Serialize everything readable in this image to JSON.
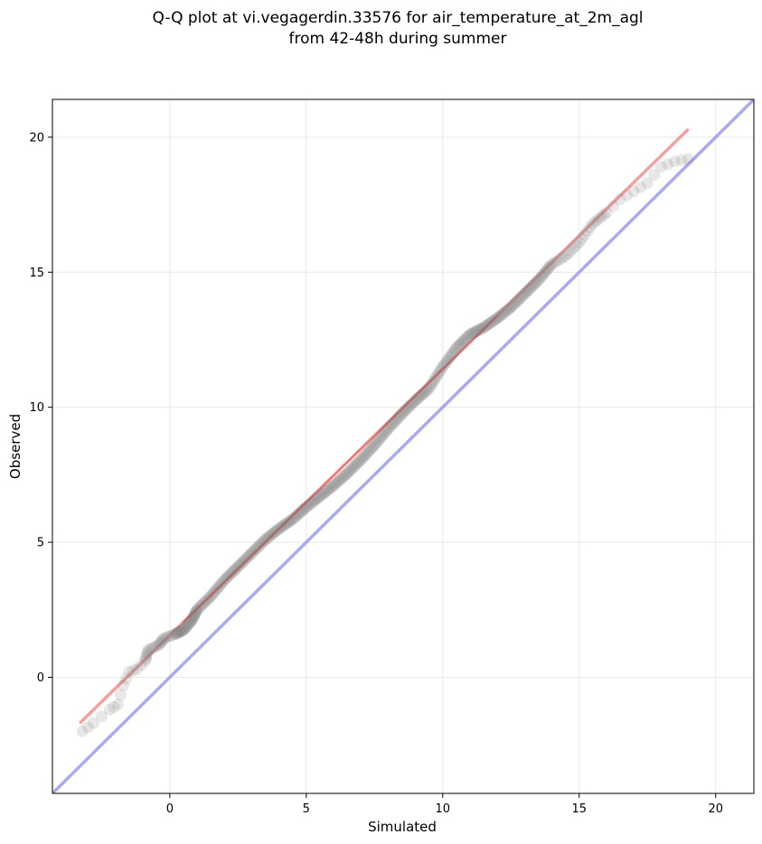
{
  "chart_data": {
    "type": "scatter",
    "title_lines": [
      "Q-Q plot at vi.vegagerdin.33576 for air_temperature_at_2m_agl",
      "from 42-48h during summer"
    ],
    "xlabel": "Simulated",
    "ylabel": "Observed",
    "xlim": [
      -4.3,
      21.4
    ],
    "ylim": [
      -4.3,
      21.4
    ],
    "x_ticks": [
      0,
      5,
      10,
      15,
      20
    ],
    "y_ticks": [
      0,
      5,
      10,
      15,
      20
    ],
    "x_tick_labels": [
      "0",
      "5",
      "10",
      "15",
      "20"
    ],
    "y_tick_labels": [
      "0",
      "5",
      "10",
      "15",
      "20"
    ],
    "grid": true,
    "point_color": "#7f7f7f",
    "fit_line_color": "#f08080",
    "identity_line_color": "#8c8cf0",
    "quantile_anchors": [
      [
        -3.2,
        -2.0
      ],
      [
        -2.8,
        -1.7
      ],
      [
        -2.2,
        -1.2
      ],
      [
        -1.9,
        -1.0
      ],
      [
        -1.7,
        -0.3
      ],
      [
        -1.5,
        0.2
      ],
      [
        -1.2,
        0.3
      ],
      [
        -0.9,
        0.6
      ],
      [
        -0.8,
        1.0
      ],
      [
        -0.4,
        1.2
      ],
      [
        -0.2,
        1.45
      ],
      [
        0.2,
        1.6
      ],
      [
        0.5,
        1.75
      ],
      [
        0.8,
        2.1
      ],
      [
        1.0,
        2.5
      ],
      [
        1.5,
        3.0
      ],
      [
        2.0,
        3.6
      ],
      [
        2.5,
        4.1
      ],
      [
        3.0,
        4.6
      ],
      [
        3.5,
        5.1
      ],
      [
        4.0,
        5.5
      ],
      [
        4.5,
        5.85
      ],
      [
        5.0,
        6.3
      ],
      [
        5.5,
        6.7
      ],
      [
        6.0,
        7.1
      ],
      [
        6.5,
        7.55
      ],
      [
        7.0,
        8.05
      ],
      [
        7.5,
        8.6
      ],
      [
        8.0,
        9.2
      ],
      [
        8.5,
        9.75
      ],
      [
        9.0,
        10.25
      ],
      [
        9.5,
        10.7
      ],
      [
        10.0,
        11.5
      ],
      [
        10.5,
        12.2
      ],
      [
        11.0,
        12.7
      ],
      [
        11.5,
        12.95
      ],
      [
        12.0,
        13.3
      ],
      [
        12.5,
        13.7
      ],
      [
        13.0,
        14.2
      ],
      [
        13.5,
        14.7
      ],
      [
        14.0,
        15.3
      ],
      [
        14.5,
        15.6
      ],
      [
        15.0,
        16.1
      ],
      [
        15.5,
        16.8
      ],
      [
        16.0,
        17.2
      ],
      [
        16.5,
        17.7
      ],
      [
        17.0,
        18.0
      ],
      [
        17.5,
        18.3
      ],
      [
        18.0,
        18.9
      ],
      [
        18.5,
        19.1
      ],
      [
        19.0,
        19.2
      ]
    ],
    "fit_line": {
      "x": [
        -3.3,
        19.0
      ],
      "y": [
        -1.7,
        20.3
      ]
    },
    "identity_line": {
      "x": [
        -4.3,
        21.4
      ],
      "y": [
        -4.3,
        21.4
      ]
    }
  }
}
